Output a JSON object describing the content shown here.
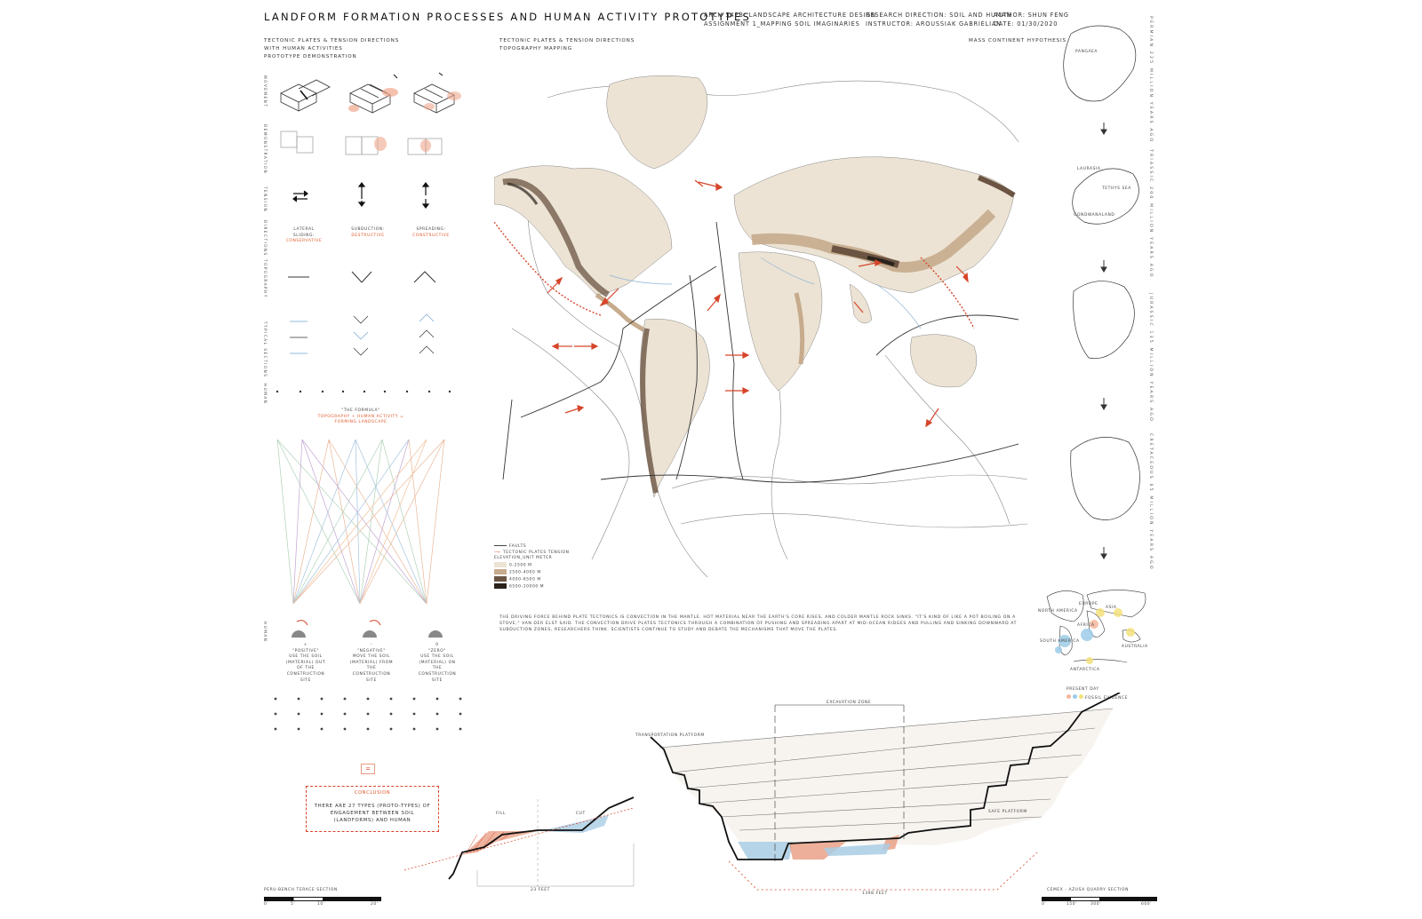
{
  "title": "Landform Formation Processes and Human Activity Prototypes",
  "header": {
    "course": "ARCH 542B: Landscape Architecture Design",
    "assignment": "Assignment 1_Mapping soil imaginaries",
    "research": "Research direction: Soil and human",
    "instructor": "Instructor: Aroussiak Gabrielian",
    "author": "Author: Shun Feng",
    "date": "Date: 01/30/2020"
  },
  "left_panel": {
    "heading_1": "tectonic plates & tension directions",
    "heading_2": "with human activities",
    "heading_3": "prototype demonstration",
    "row_labels": [
      "movement",
      "demonstration",
      "tension",
      "directions",
      "topography",
      "typical sections",
      "human"
    ],
    "types": [
      {
        "name": "lateral sliding:",
        "kind": "conservative"
      },
      {
        "name": "subduction:",
        "kind": "destructive"
      },
      {
        "name": "spreading:",
        "kind": "constructive"
      }
    ],
    "formula_title": "\"the formula\"",
    "formula_line": "topography + human activity = forming landscape",
    "activities": [
      {
        "sign": "+",
        "name": "\"positive\"",
        "desc": "use the soil (material) out of the construction site"
      },
      {
        "sign": "-",
        "name": "\"negative\"",
        "desc": "move the soil (material) from the construction site"
      },
      {
        "sign": "0",
        "name": "\"zero\"",
        "desc": "use the soil (material) on the construction site"
      }
    ],
    "equals": "=",
    "conclusion_label": "conclusion",
    "conclusion_text": "there are 27 types (proto-types) of engagement between soil (landforms) and human"
  },
  "map_panel": {
    "heading_1": "tectonic plates & tension directions",
    "heading_2": "topography mapping",
    "legend": {
      "faults": "faults",
      "tension": "tectonic plates tension",
      "elevation_title": "elevation_unit meter",
      "bands": [
        {
          "label": "0-2500 m",
          "color": "#ece3d4"
        },
        {
          "label": "2500-4000 m",
          "color": "#c7ab8d"
        },
        {
          "label": "4000-6500 m",
          "color": "#6b5442"
        },
        {
          "label": "6500-10000 m",
          "color": "#2a211b"
        }
      ]
    },
    "paragraph": "The driving force behind plate tectonics is convection in the mantle. Hot material near the Earth's core rises, and colder mantle rock sinks. \"It's kind of like a pot boiling on a stove,\" Van der Elst said. The convection drive plates tectonics through a combination of pushing and spreading apart at mid-ocean ridges and pulling and sinking downward at subduction zones, researchers think. Scientists continue to study and debate the mechanisms that move the plates."
  },
  "right_panel": {
    "heading": "mass continent hypothesis",
    "stages": [
      {
        "label": "Pangaea",
        "era": "Permian 225 million years ago"
      },
      {
        "label": "Laurasia / Tethys Sea / Gondwanaland",
        "era": "Triassic 200 million years ago"
      },
      {
        "label": "",
        "era": "Jurassic 135 million years ago"
      },
      {
        "label": "",
        "era": "Cretaceous 65 million years ago"
      }
    ],
    "laurasia": "Laurasia",
    "tethys": "Tethys Sea",
    "gondwana": "Gondwanaland",
    "present_labels": [
      "North America",
      "Europe",
      "Asia",
      "Africa",
      "South America",
      "Australia",
      "Antarctica"
    ],
    "present_day": "present day",
    "fossil": "fossil evidence",
    "fossil_colors": [
      "#f4b69a",
      "#9ccbe8",
      "#f3e07a"
    ]
  },
  "sections": {
    "peru_title": "Peru-bench terace section",
    "peru_scale": [
      "0'",
      "5'",
      "10'",
      "20'"
    ],
    "fill": "Fill",
    "cut": "Cut",
    "peru_width": "23 feet",
    "quarry_title": "Cemex - Azusa Quarry section",
    "quarry_scale": [
      "0'",
      "150'",
      "300'",
      "600'"
    ],
    "excavation": "Excavation zone",
    "transport": "Transportation platform",
    "safe": "safe platform",
    "quarry_width": "1398 feet"
  },
  "colors": {
    "accent": "#d6452a",
    "fill_pink": "#e89b80",
    "cut_blue": "#a9cde3"
  }
}
